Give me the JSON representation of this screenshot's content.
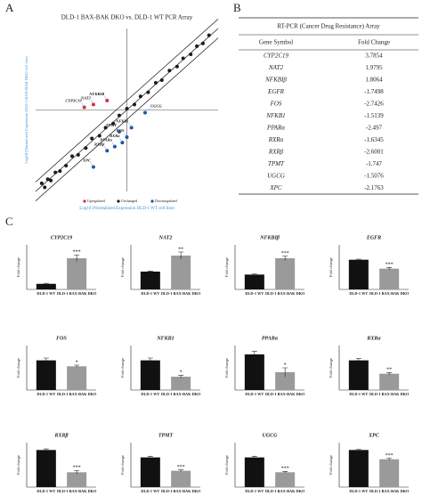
{
  "panel_labels": [
    "A",
    "B",
    "C"
  ],
  "chart_data": [
    {
      "type": "scatter",
      "title": "DLD-1 BAX-BAK DKO vs. DLD-1 WT  PCR Array",
      "xlabel": "Log10 (Normalized Expression DLD-1 WT cell line)",
      "ylabel": "Log10 (Normalized Expression DLD-1 BAX-BAK DKO cell line)",
      "xlim": [
        -6,
        6
      ],
      "ylim": [
        -6,
        6
      ],
      "series": [
        {
          "name": "Upregulated",
          "color": "#e0263a",
          "x": [
            -2.8,
            -2.2,
            -1.3
          ],
          "values": [
            0.2,
            0.4,
            0.7
          ],
          "point_labels": [
            "CYP2C19",
            "NAT2",
            "NFKBIB"
          ]
        },
        {
          "name": "Unchanged",
          "color": "#1a1a1a",
          "x": [
            -5.6,
            -5.4,
            -5.2,
            -5.0,
            -4.7,
            -4.4,
            -4.0,
            -3.6,
            -3.2,
            -2.7,
            -2.3,
            -1.8,
            -1.4,
            -0.9,
            -0.5,
            0.0,
            0.5,
            0.9,
            1.4,
            1.9,
            2.3,
            2.8,
            3.3,
            3.7,
            4.2,
            4.6,
            5.0,
            5.4
          ],
          "values": [
            -5.4,
            -5.7,
            -5.1,
            -5.2,
            -4.6,
            -4.5,
            -4.1,
            -3.4,
            -3.3,
            -2.8,
            -2.1,
            -1.9,
            -1.3,
            -1.0,
            -0.4,
            0.1,
            0.4,
            1.0,
            1.3,
            2.0,
            2.2,
            2.9,
            3.2,
            3.8,
            4.1,
            4.7,
            4.9,
            5.5
          ]
        },
        {
          "name": "Downregulated",
          "color": "#1f4fa0",
          "x": [
            1.2,
            -0.5,
            0.3,
            0.0,
            -0.3,
            -0.8,
            -1.3,
            -2.2
          ],
          "values": [
            -0.2,
            -1.6,
            -1.3,
            -2.0,
            -2.4,
            -2.7,
            -3.0,
            -4.2
          ],
          "point_labels": [
            "UGCG",
            "TPMT",
            "NFKB1",
            "FOS",
            "RXRa",
            "PPARa",
            "RXRβ",
            "XPC"
          ]
        }
      ]
    },
    {
      "type": "bar",
      "title": "CYP2C19",
      "ylabel": "Fold change",
      "categories": [
        "DLD-1 WT",
        "DLD-1 BAX-BAK DKO"
      ],
      "values": [
        0.5,
        2.8
      ],
      "errors": [
        0.05,
        0.3
      ],
      "colors": [
        "#111111",
        "#9a9a9a"
      ],
      "significance": "***",
      "ylim": [
        0,
        4
      ]
    },
    {
      "type": "bar",
      "title": "NAT2",
      "ylabel": "Fold change",
      "categories": [
        "DLD-1 WT",
        "DLD-1 BAX-BAK DKO"
      ],
      "values": [
        1,
        1.9
      ],
      "errors": [
        0.03,
        0.2
      ],
      "colors": [
        "#111111",
        "#9a9a9a"
      ],
      "significance": "**",
      "ylim": [
        0,
        2.5
      ]
    },
    {
      "type": "bar",
      "title": "NFKBIβ",
      "ylabel": "Fold change",
      "categories": [
        "DLD-1 WT",
        "DLD-1 BAX-BAK DKO"
      ],
      "values": [
        1,
        2.1
      ],
      "errors": [
        0.05,
        0.15
      ],
      "colors": [
        "#111111",
        "#9a9a9a"
      ],
      "significance": "***",
      "ylim": [
        0,
        3
      ]
    },
    {
      "type": "bar",
      "title": "EGFR",
      "ylabel": "Fold change",
      "categories": [
        "DLD-1 WT",
        "DLD-1 BAX-BAK DKO"
      ],
      "values": [
        1,
        0.7
      ],
      "errors": [
        0.02,
        0.04
      ],
      "colors": [
        "#111111",
        "#9a9a9a"
      ],
      "significance": "***",
      "ylim": [
        0,
        1.5
      ]
    },
    {
      "type": "bar",
      "title": "FOS",
      "ylabel": "Fold change",
      "categories": [
        "DLD-1 WT",
        "DLD-1 BAX-BAK DKO"
      ],
      "values": [
        1,
        0.8
      ],
      "errors": [
        0.08,
        0.04
      ],
      "colors": [
        "#111111",
        "#9a9a9a"
      ],
      "significance": "*",
      "ylim": [
        0,
        1.5
      ]
    },
    {
      "type": "bar",
      "title": "NFKB1",
      "ylabel": "Fold change",
      "categories": [
        "DLD-1 WT",
        "DLD-1 BAX-BAK DKO"
      ],
      "values": [
        1,
        0.45
      ],
      "errors": [
        0.08,
        0.05
      ],
      "colors": [
        "#111111",
        "#9a9a9a"
      ],
      "significance": "*",
      "ylim": [
        0,
        1.5
      ]
    },
    {
      "type": "bar",
      "title": "PPARα",
      "ylabel": "Fold change",
      "categories": [
        "DLD-1 WT",
        "DLD-1 BAX-BAK DKO"
      ],
      "values": [
        1.2,
        0.6
      ],
      "errors": [
        0.1,
        0.15
      ],
      "colors": [
        "#111111",
        "#9a9a9a"
      ],
      "significance": "*",
      "ylim": [
        0,
        1.5
      ]
    },
    {
      "type": "bar",
      "title": "RXRα",
      "ylabel": "Fold change",
      "categories": [
        "DLD-1 WT",
        "DLD-1 BAX-BAK DKO"
      ],
      "values": [
        1,
        0.55
      ],
      "errors": [
        0.06,
        0.04
      ],
      "colors": [
        "#111111",
        "#9a9a9a"
      ],
      "significance": "**",
      "ylim": [
        0,
        1.5
      ]
    },
    {
      "type": "bar",
      "title": "RXRβ",
      "ylabel": "Fold change",
      "categories": [
        "DLD-1 WT",
        "DLD-1 BAX-BAK DKO"
      ],
      "values": [
        1,
        0.4
      ],
      "errors": [
        0.03,
        0.05
      ],
      "colors": [
        "#111111",
        "#9a9a9a"
      ],
      "significance": "***",
      "ylim": [
        0,
        1.2
      ]
    },
    {
      "type": "bar",
      "title": "TPMT",
      "ylabel": "Fold change",
      "categories": [
        "DLD-1 WT",
        "DLD-1 BAX-BAK DKO"
      ],
      "values": [
        1,
        0.55
      ],
      "errors": [
        0.04,
        0.03
      ],
      "colors": [
        "#111111",
        "#9a9a9a"
      ],
      "significance": "***",
      "ylim": [
        0,
        1.5
      ]
    },
    {
      "type": "bar",
      "title": "UGCG",
      "ylabel": "Fold change",
      "categories": [
        "DLD-1 WT",
        "DLD-1 BAX-BAK DKO"
      ],
      "values": [
        1,
        0.5
      ],
      "errors": [
        0.04,
        0.03
      ],
      "colors": [
        "#111111",
        "#9a9a9a"
      ],
      "significance": "***",
      "ylim": [
        0,
        1.5
      ]
    },
    {
      "type": "bar",
      "title": "XPC",
      "ylabel": "Fold change",
      "categories": [
        "DLD-1 WT",
        "DLD-1 BAX-BAK DKO"
      ],
      "values": [
        1,
        0.75
      ],
      "errors": [
        0.02,
        0.03
      ],
      "colors": [
        "#111111",
        "#9a9a9a"
      ],
      "significance": "***",
      "ylim": [
        0,
        1.2
      ]
    }
  ],
  "table": {
    "title": "RT-PCR (Cancer Drug Resistance) Array",
    "headers": [
      "Gene Symbol",
      "Fold Change"
    ],
    "rows": [
      [
        "CYP2C19",
        3.7854
      ],
      [
        "NAT2",
        1.9795
      ],
      [
        "NFKBIβ",
        1.8064
      ],
      [
        "EGFR",
        -1.7498
      ],
      [
        "FOS",
        -2.7426
      ],
      [
        "NFKB1",
        -1.5139
      ],
      [
        "PPARα",
        -2.497
      ],
      [
        "RXRα",
        -1.6345
      ],
      [
        "RXRβ",
        -2.6001
      ],
      [
        "TPMT",
        -1.747
      ],
      [
        "UGCG",
        -1.5076
      ],
      [
        "XPC",
        -2.1763
      ]
    ]
  }
}
